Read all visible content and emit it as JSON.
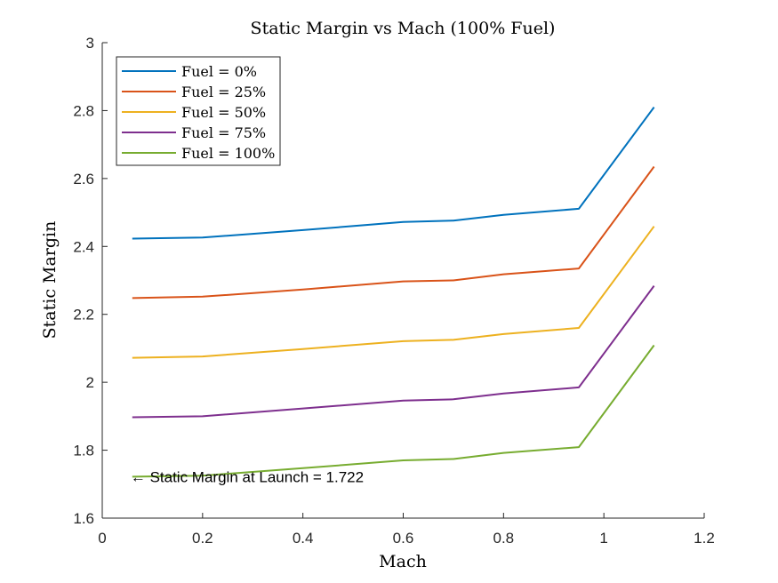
{
  "chart_data": {
    "type": "line",
    "title": "Static Margin vs Mach (100% Fuel)",
    "xlabel": "Mach",
    "ylabel": "Static Margin",
    "xlim": [
      0,
      1.2
    ],
    "ylim": [
      1.6,
      3
    ],
    "xticks": [
      0,
      0.2,
      0.4,
      0.6,
      0.8,
      1,
      1.2
    ],
    "xtick_labels": [
      "0",
      "0.2",
      "0.4",
      "0.6",
      "0.8",
      "1",
      "1.2"
    ],
    "yticks": [
      1.6,
      1.8,
      2,
      2.2,
      2.4,
      2.6,
      2.8,
      3
    ],
    "ytick_labels": [
      "1.6",
      "1.8",
      "2",
      "2.2",
      "2.4",
      "2.6",
      "2.8",
      "3"
    ],
    "grid": false,
    "legend_position": "top-left",
    "x": [
      0.06,
      0.2,
      0.4,
      0.6,
      0.7,
      0.8,
      0.95,
      1.1
    ],
    "series": [
      {
        "name": "Fuel = 0%",
        "color": "#0072BD",
        "values": [
          2.423,
          2.426,
          2.448,
          2.472,
          2.476,
          2.493,
          2.511,
          2.81
        ]
      },
      {
        "name": "Fuel = 25%",
        "color": "#D95319",
        "values": [
          2.248,
          2.252,
          2.273,
          2.297,
          2.3,
          2.318,
          2.335,
          2.635
        ]
      },
      {
        "name": "Fuel = 50%",
        "color": "#EDB120",
        "values": [
          2.072,
          2.076,
          2.098,
          2.121,
          2.125,
          2.142,
          2.16,
          2.459
        ]
      },
      {
        "name": "Fuel = 75%",
        "color": "#7E2F8E",
        "values": [
          1.897,
          1.9,
          1.923,
          1.946,
          1.95,
          1.967,
          1.985,
          2.284
        ]
      },
      {
        "name": "Fuel = 100%",
        "color": "#77AC30",
        "values": [
          1.722,
          1.725,
          1.747,
          1.77,
          1.774,
          1.792,
          1.809,
          2.109
        ]
      }
    ],
    "annotations": [
      {
        "text": "← Static Margin at Launch = 1.722",
        "x": 0.06,
        "y": 1.722
      }
    ]
  }
}
